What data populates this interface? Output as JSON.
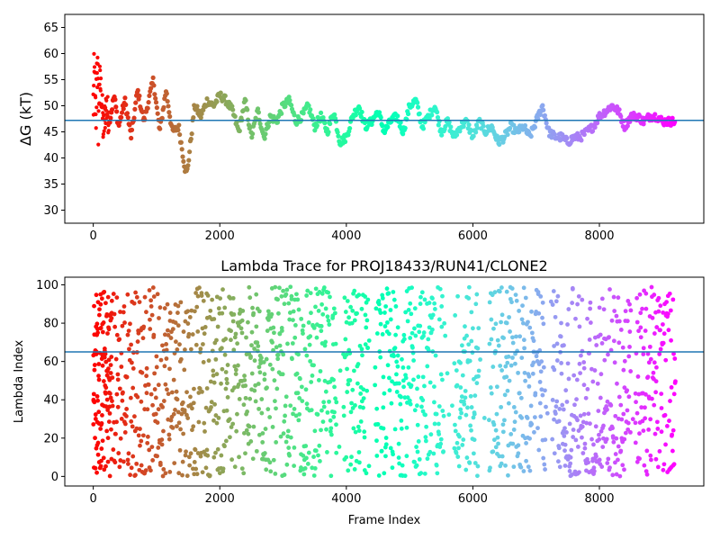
{
  "chart_data": [
    {
      "type": "scatter",
      "title": "",
      "xlabel": "",
      "ylabel": "ΔG (kT)",
      "xlim": [
        -450,
        9650
      ],
      "ylim": [
        27.5,
        67.5
      ],
      "xticks": [
        0,
        2000,
        4000,
        6000,
        8000
      ],
      "xtick_labels": [
        "0",
        "2000",
        "4000",
        "6000",
        "8000"
      ],
      "yticks": [
        30,
        35,
        40,
        45,
        50,
        55,
        60,
        65
      ],
      "ytick_labels": [
        "30",
        "35",
        "40",
        "45",
        "50",
        "55",
        "60",
        "65"
      ],
      "grid": false,
      "colormap": "rainbow (red at frame 0 to violet at frame ~9200)",
      "reference_line": {
        "y": 47.2,
        "color": "#1f77b4"
      },
      "trace_keypoints": {
        "x": [
          0,
          20,
          40,
          60,
          80,
          100,
          130,
          160,
          200,
          260,
          330,
          400,
          500,
          600,
          700,
          800,
          950,
          1050,
          1150,
          1250,
          1350,
          1450,
          1480,
          1520,
          1600,
          1700,
          1800,
          1900,
          2000,
          2100,
          2200,
          2300,
          2400,
          2500,
          2600,
          2700,
          2800,
          2900,
          3000,
          3100,
          3200,
          3300,
          3400,
          3500,
          3600,
          3700,
          3800,
          3900,
          4000,
          4100,
          4200,
          4300,
          4400,
          4500,
          4600,
          4700,
          4800,
          4900,
          5000,
          5100,
          5200,
          5300,
          5400,
          5500,
          5600,
          5700,
          5800,
          5900,
          6000,
          6100,
          6200,
          6300,
          6400,
          6500,
          6600,
          6700,
          6800,
          6900,
          7000,
          7100,
          7200,
          7300,
          7400,
          7500,
          7600,
          7700,
          7800,
          7900,
          8000,
          8100,
          8200,
          8300,
          8400,
          8500,
          8600,
          8700,
          8800,
          8900,
          9000,
          9100,
          9200
        ],
        "y": [
          50,
          55,
          45,
          60,
          48,
          55,
          52,
          45,
          50,
          47,
          52,
          46,
          51,
          44,
          53,
          47,
          55,
          45,
          53,
          45,
          46,
          38,
          37,
          41,
          50,
          48,
          51,
          50,
          52,
          51,
          49,
          45,
          51,
          44,
          49,
          44,
          48,
          47,
          50,
          51,
          47,
          48,
          50,
          46,
          48,
          45,
          49,
          43,
          44,
          48,
          50,
          46,
          47,
          49,
          45,
          47,
          48,
          45,
          50,
          51,
          46,
          48,
          50,
          45,
          47,
          44,
          46,
          47,
          44,
          47,
          45,
          46,
          43,
          44,
          46,
          45,
          46,
          44,
          47,
          50,
          45,
          44,
          44,
          43,
          44,
          44,
          45,
          46,
          48,
          49,
          50,
          49,
          46,
          48,
          48,
          47,
          48,
          48,
          47,
          47,
          47
        ]
      }
    },
    {
      "type": "scatter",
      "title": "Lambda Trace for PROJ18433/RUN41/CLONE2",
      "xlabel": "Frame Index",
      "ylabel": "Lambda Index",
      "xlim": [
        -450,
        9650
      ],
      "ylim": [
        -5,
        104
      ],
      "xticks": [
        0,
        2000,
        4000,
        6000,
        8000
      ],
      "xtick_labels": [
        "0",
        "2000",
        "4000",
        "6000",
        "8000"
      ],
      "yticks": [
        0,
        20,
        40,
        60,
        80,
        100
      ],
      "ytick_labels": [
        "0",
        "20",
        "40",
        "60",
        "80",
        "100"
      ],
      "grid": false,
      "colormap": "rainbow (red at frame 0 to violet at frame ~9200)",
      "reference_line": {
        "y": 65,
        "color": "#1f77b4"
      },
      "point_range": {
        "x": [
          0,
          9200
        ],
        "y": [
          0,
          99
        ]
      },
      "sparse_x_bands": [
        [
          3850,
          3950
        ],
        [
          4350,
          4450
        ],
        [
          5550,
          5700
        ],
        [
          6100,
          6250
        ],
        [
          7150,
          7250
        ],
        [
          8500,
          8560
        ]
      ]
    }
  ]
}
